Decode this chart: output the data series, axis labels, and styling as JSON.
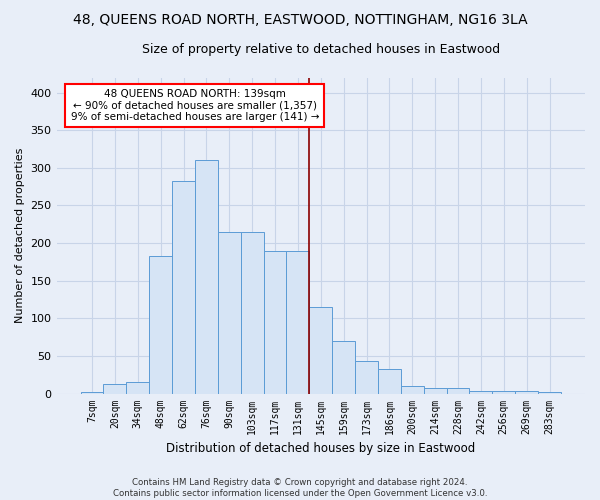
{
  "title": "48, QUEENS ROAD NORTH, EASTWOOD, NOTTINGHAM, NG16 3LA",
  "subtitle": "Size of property relative to detached houses in Eastwood",
  "xlabel": "Distribution of detached houses by size in Eastwood",
  "ylabel": "Number of detached properties",
  "categories": [
    "7sqm",
    "20sqm",
    "34sqm",
    "48sqm",
    "62sqm",
    "76sqm",
    "90sqm",
    "103sqm",
    "117sqm",
    "131sqm",
    "145sqm",
    "159sqm",
    "173sqm",
    "186sqm",
    "200sqm",
    "214sqm",
    "228sqm",
    "242sqm",
    "256sqm",
    "269sqm",
    "283sqm"
  ],
  "values": [
    2,
    13,
    15,
    183,
    283,
    310,
    215,
    215,
    190,
    190,
    115,
    70,
    43,
    32,
    10,
    7,
    7,
    4,
    3,
    3,
    2
  ],
  "bar_color": "#d6e4f5",
  "bar_edge_color": "#5b9bd5",
  "highlight_line_color": "#8b0000",
  "highlight_line_index": 10,
  "annotation_text": "48 QUEENS ROAD NORTH: 139sqm\n← 90% of detached houses are smaller (1,357)\n9% of semi-detached houses are larger (141) →",
  "annotation_box_color": "white",
  "annotation_box_edge_color": "red",
  "ylim": [
    0,
    420
  ],
  "yticks": [
    0,
    50,
    100,
    150,
    200,
    250,
    300,
    350,
    400
  ],
  "footer_text": "Contains HM Land Registry data © Crown copyright and database right 2024.\nContains public sector information licensed under the Open Government Licence v3.0.",
  "background_color": "#e8eef8",
  "title_fontsize": 10,
  "subtitle_fontsize": 9,
  "grid_color": "#c8d4e8"
}
